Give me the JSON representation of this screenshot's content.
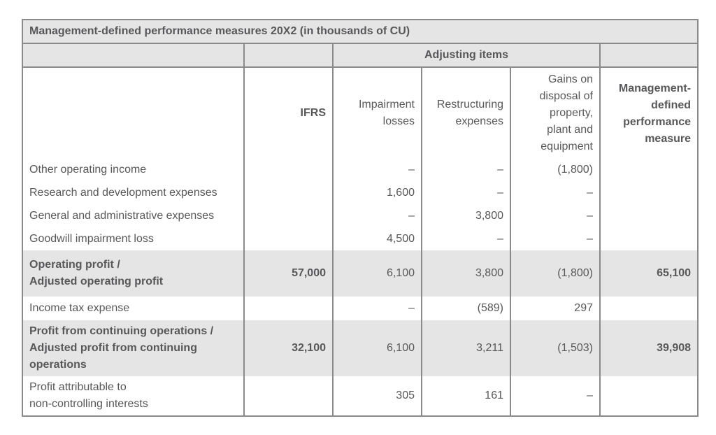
{
  "title": "Management-defined performance measures 20X2 (in thousands of CU)",
  "adjusting_items_label": "Adjusting items",
  "columns": {
    "ifrs": "IFRS",
    "impairment_1": "Impairment",
    "impairment_2": "losses",
    "restructuring_1": "Restructuring",
    "restructuring_2": "expenses",
    "gains_1": "Gains on",
    "gains_2": "disposal of",
    "gains_3": "property,",
    "gains_4": "plant and",
    "gains_5": "equipment",
    "mdpm_1": "Management-",
    "mdpm_2": "defined",
    "mdpm_3": "performance",
    "mdpm_4": "measure"
  },
  "rows": [
    {
      "label": "Other operating income",
      "ifrs": "",
      "impairment": "–",
      "restructuring": "–",
      "gains": "(1,800)",
      "mdpm": ""
    },
    {
      "label": "Research and development expenses",
      "ifrs": "",
      "impairment": "1,600",
      "restructuring": "–",
      "gains": "–",
      "mdpm": ""
    },
    {
      "label": "General and administrative expenses",
      "ifrs": "",
      "impairment": "–",
      "restructuring": "3,800",
      "gains": "–",
      "mdpm": ""
    },
    {
      "label": "Goodwill impairment loss",
      "ifrs": "",
      "impairment": "4,500",
      "restructuring": "–",
      "gains": "–",
      "mdpm": ""
    },
    {
      "label_1": "Operating profit /",
      "label_2": "Adjusted operating profit",
      "ifrs": "57,000",
      "impairment": "6,100",
      "restructuring": "3,800",
      "gains": "(1,800)",
      "mdpm": "65,100"
    },
    {
      "label": "Income tax expense",
      "ifrs": "",
      "impairment": "–",
      "restructuring": "(589)",
      "gains": "297",
      "mdpm": ""
    },
    {
      "label_1": "Profit from continuing operations /",
      "label_2": "Adjusted profit from continuing",
      "label_3": "operations",
      "ifrs": "32,100",
      "impairment": "6,100",
      "restructuring": "3,211",
      "gains": "(1,503)",
      "mdpm": "39,908"
    },
    {
      "label_1": "Profit attributable to",
      "label_2": "non-controlling interests",
      "ifrs": "",
      "impairment": "305",
      "restructuring": "161",
      "gains": "–",
      "mdpm": ""
    }
  ]
}
